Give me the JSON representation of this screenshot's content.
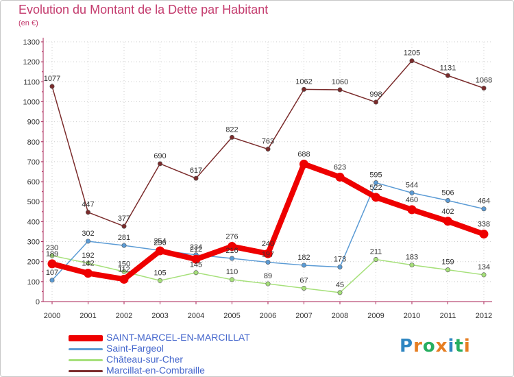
{
  "title": "Evolution du Montant de la Dette par Habitant",
  "unit": "(en €)",
  "logo": {
    "letters": [
      "P",
      "r",
      "o",
      "x",
      "i",
      "t",
      "i"
    ],
    "colors": [
      "#2e86c1",
      "#e67e22",
      "#27ae60",
      "#e67e22",
      "#2e86c1",
      "#27ae60",
      "#e67e22"
    ]
  },
  "chart_data": {
    "type": "line",
    "x": [
      "2000",
      "2001",
      "2002",
      "2003",
      "2004",
      "2005",
      "2006",
      "2007",
      "2008",
      "2009",
      "2010",
      "2011",
      "2012"
    ],
    "ylim": [
      0,
      1300
    ],
    "yticks": [
      "0",
      "100",
      "200",
      "300",
      "400",
      "500",
      "600",
      "700",
      "800",
      "900",
      "1000",
      "1100",
      "1200",
      "1300"
    ],
    "grid": true,
    "legend_position": "bottom-left",
    "series": [
      {
        "name": "SAINT-MARCEL-EN-MARCILLAT",
        "color": "#ee0000",
        "values": [
          189,
          142,
          112,
          254,
          212,
          276,
          240,
          688,
          623,
          522,
          460,
          402,
          338
        ]
      },
      {
        "name": "Saint-Fargeol",
        "color": "#5b9bd5",
        "values": [
          107,
          302,
          281,
          256,
          234,
          216,
          197,
          182,
          173,
          595,
          544,
          506,
          464
        ]
      },
      {
        "name": "Château-sur-Cher",
        "color": "#a6e07a",
        "values": [
          230,
          192,
          150,
          105,
          145,
          110,
          89,
          67,
          45,
          211,
          183,
          159,
          134
        ]
      },
      {
        "name": "Marcillat-en-Combraille",
        "color": "#7b2c2c",
        "values": [
          1077,
          447,
          377,
          690,
          617,
          822,
          763,
          1062,
          1060,
          998,
          1205,
          1131,
          1068
        ]
      }
    ]
  }
}
